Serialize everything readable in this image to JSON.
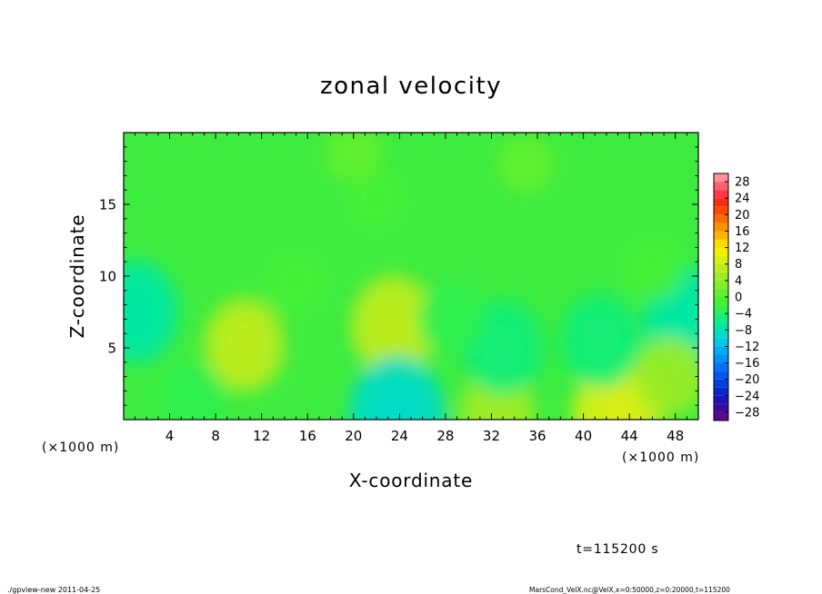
{
  "chart_data": {
    "type": "heatmap",
    "title": "zonal velocity",
    "xlabel": "X-coordinate",
    "ylabel": "Z-coordinate",
    "x_unit_left": "(×1000 m)",
    "x_unit_right": "(×1000 m)",
    "xlim": [
      0,
      50
    ],
    "ylim": [
      0,
      20
    ],
    "x_ticks": [
      4,
      8,
      12,
      16,
      20,
      24,
      28,
      32,
      36,
      40,
      44,
      48
    ],
    "x_tick_labels": [
      "4",
      "8",
      "12",
      "16",
      "20",
      "24",
      "28",
      "32",
      "36",
      "40",
      "44",
      "48"
    ],
    "y_ticks": [
      5,
      10,
      15
    ],
    "y_tick_labels": [
      "5",
      "10",
      "15"
    ],
    "colorbar": {
      "levels": [
        -30,
        -28,
        -26,
        -24,
        -22,
        -20,
        -18,
        -16,
        -14,
        -12,
        -10,
        -8,
        -6,
        -4,
        -2,
        0,
        2,
        4,
        6,
        8,
        10,
        12,
        14,
        16,
        18,
        20,
        22,
        24,
        26,
        28,
        30
      ],
      "colors": [
        "#5a0a8c",
        "#3c0aa0",
        "#1e14b4",
        "#0a28c8",
        "#0040dc",
        "#0058ee",
        "#0074f4",
        "#0090f6",
        "#00acf0",
        "#00c8e4",
        "#00dcc6",
        "#00e8a2",
        "#12ee78",
        "#2ef050",
        "#46f236",
        "#62f02e",
        "#80ee2a",
        "#9eec26",
        "#bcec1e",
        "#d8ee14",
        "#f0f000",
        "#ffd800",
        "#ffb400",
        "#ff9000",
        "#ff6a00",
        "#ff4800",
        "#ff2a10",
        "#ff3a40",
        "#ff6070",
        "#ff90a0"
      ],
      "tick_values": [
        28,
        24,
        20,
        16,
        12,
        8,
        4,
        0,
        -4,
        -8,
        -12,
        -16,
        -20,
        -24,
        -28
      ],
      "tick_labels": [
        "28",
        "24",
        "20",
        "16",
        "12",
        "8",
        "4",
        "0",
        "−4",
        "−8",
        "−12",
        "−16",
        "−20",
        "−24",
        "−28"
      ]
    },
    "field_features": [
      {
        "kind": "max",
        "x": 23.5,
        "z": 6.5,
        "value": 7
      },
      {
        "kind": "max",
        "x": 10.5,
        "z": 5.2,
        "value": 6
      },
      {
        "kind": "max",
        "x": 43.0,
        "z": 0.3,
        "value": 8
      },
      {
        "kind": "max",
        "x": 32.5,
        "z": 0.4,
        "value": 5
      },
      {
        "kind": "min",
        "x": 23.8,
        "z": 0.3,
        "value": -9
      },
      {
        "kind": "min",
        "x": 1.0,
        "z": 7.5,
        "value": -7
      },
      {
        "kind": "min",
        "x": 49.0,
        "z": 7.0,
        "value": -7
      },
      {
        "kind": "min",
        "x": 33.0,
        "z": 5.0,
        "value": -6
      },
      {
        "kind": "min",
        "x": 41.5,
        "z": 5.5,
        "value": -6
      },
      {
        "kind": "min",
        "x": 28.5,
        "z": 7.0,
        "value": -3
      },
      {
        "kind": "min",
        "x": 15.0,
        "z": 9.5,
        "value": -2
      },
      {
        "kind": "min",
        "x": 6.0,
        "z": 1.5,
        "value": -3
      },
      {
        "kind": "min",
        "x": 46.0,
        "z": 10.5,
        "value": -2
      },
      {
        "kind": "max",
        "x": 47.5,
        "z": 3.0,
        "value": 4
      },
      {
        "kind": "max",
        "x": 20.0,
        "z": 18.5,
        "value": 1.5
      },
      {
        "kind": "max",
        "x": 35.0,
        "z": 17.8,
        "value": 1.5
      },
      {
        "kind": "min",
        "x": 22.0,
        "z": 15.2,
        "value": -1.5
      }
    ]
  },
  "annotations": {
    "time": "t=115200 s",
    "footer_left": "./gpview-new  2011-04-25",
    "footer_right": "MarsCond_VelX.nc@VelX,x=0:50000,z=0:20000,t=115200"
  }
}
